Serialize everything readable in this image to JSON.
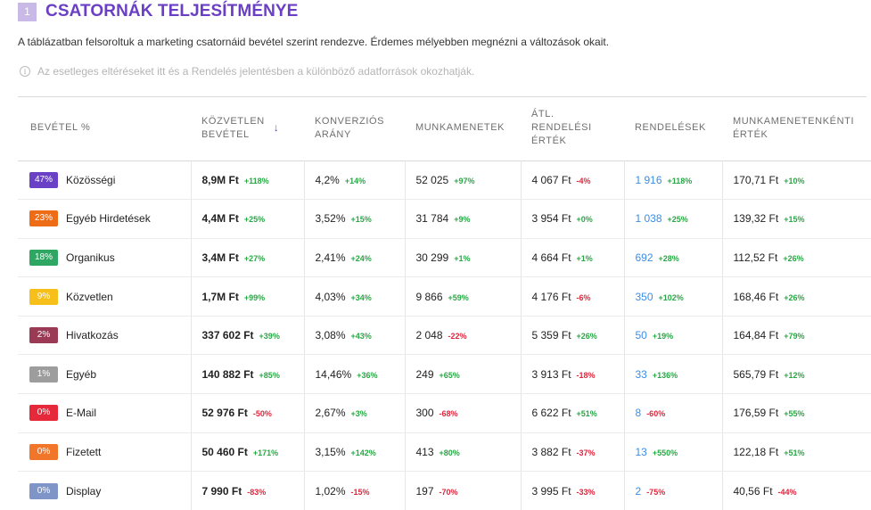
{
  "header": {
    "number": "1",
    "title": "CSATORNÁK TELJESÍTMÉNYE"
  },
  "description": "A táblázatban felsoroltuk a marketing csatornáid bevétel szerint rendezve. Érdemes mélyebben megnézni a változások okait.",
  "info_note": "Az esetleges eltéréseket itt és a Rendelés jelentésben a különböző adatforrások okozhatják.",
  "columns": [
    {
      "line1": "BEVÉTEL %",
      "line2": "",
      "line3": ""
    },
    {
      "line1": "KÖZVETLEN",
      "line2": "BEVÉTEL",
      "line3": ""
    },
    {
      "line1": "KONVERZIÓS",
      "line2": "ARÁNY",
      "line3": ""
    },
    {
      "line1": "MUNKAMENETEK",
      "line2": "",
      "line3": ""
    },
    {
      "line1": "ÁTL.",
      "line2": "RENDELÉSI",
      "line3": "ÉRTÉK"
    },
    {
      "line1": "RENDELÉSEK",
      "line2": "",
      "line3": ""
    },
    {
      "line1": "MUNKAMENETENKÉNTI",
      "line2": "ÉRTÉK",
      "line3": ""
    }
  ],
  "sort_icon": "arrow-down-icon",
  "rows": [
    {
      "pct": "47%",
      "color": "#6a41c6",
      "name": "Közösségi",
      "revenue": "8,9M Ft",
      "revenue_chg": "+118%",
      "conv": "4,2%",
      "conv_chg": "+14%",
      "sessions": "52 025",
      "sessions_chg": "+97%",
      "aov": "4 067 Ft",
      "aov_chg": "-4%",
      "orders": "1 916",
      "orders_chg": "+118%",
      "per_session": "170,71 Ft",
      "per_session_chg": "+10%"
    },
    {
      "pct": "23%",
      "color": "#ef6c17",
      "name": "Egyéb Hirdetések",
      "revenue": "4,4M Ft",
      "revenue_chg": "+25%",
      "conv": "3,52%",
      "conv_chg": "+15%",
      "sessions": "31 784",
      "sessions_chg": "+9%",
      "aov": "3 954 Ft",
      "aov_chg": "+0%",
      "orders": "1 038",
      "orders_chg": "+25%",
      "per_session": "139,32 Ft",
      "per_session_chg": "+15%"
    },
    {
      "pct": "18%",
      "color": "#2ea763",
      "name": "Organikus",
      "revenue": "3,4M Ft",
      "revenue_chg": "+27%",
      "conv": "2,41%",
      "conv_chg": "+24%",
      "sessions": "30 299",
      "sessions_chg": "+1%",
      "aov": "4 664 Ft",
      "aov_chg": "+1%",
      "orders": "692",
      "orders_chg": "+28%",
      "per_session": "112,52 Ft",
      "per_session_chg": "+26%"
    },
    {
      "pct": "9%",
      "color": "#f6bf1a",
      "name": "Közvetlen",
      "revenue": "1,7M Ft",
      "revenue_chg": "+99%",
      "conv": "4,03%",
      "conv_chg": "+34%",
      "sessions": "9 866",
      "sessions_chg": "+59%",
      "aov": "4 176 Ft",
      "aov_chg": "-6%",
      "orders": "350",
      "orders_chg": "+102%",
      "per_session": "168,46 Ft",
      "per_session_chg": "+26%"
    },
    {
      "pct": "2%",
      "color": "#9b3a55",
      "name": "Hivatkozás",
      "revenue": "337 602 Ft",
      "revenue_chg": "+39%",
      "conv": "3,08%",
      "conv_chg": "+43%",
      "sessions": "2 048",
      "sessions_chg": "-22%",
      "aov": "5 359 Ft",
      "aov_chg": "+26%",
      "orders": "50",
      "orders_chg": "+19%",
      "per_session": "164,84 Ft",
      "per_session_chg": "+79%"
    },
    {
      "pct": "1%",
      "color": "#9d9d9d",
      "name": "Egyéb",
      "revenue": "140 882 Ft",
      "revenue_chg": "+85%",
      "conv": "14,46%",
      "conv_chg": "+36%",
      "sessions": "249",
      "sessions_chg": "+65%",
      "aov": "3 913 Ft",
      "aov_chg": "-18%",
      "orders": "33",
      "orders_chg": "+136%",
      "per_session": "565,79 Ft",
      "per_session_chg": "+12%"
    },
    {
      "pct": "0%",
      "color": "#e5293b",
      "name": "E-Mail",
      "revenue": "52 976 Ft",
      "revenue_chg": "-50%",
      "conv": "2,67%",
      "conv_chg": "+3%",
      "sessions": "300",
      "sessions_chg": "-68%",
      "aov": "6 622 Ft",
      "aov_chg": "+51%",
      "orders": "8",
      "orders_chg": "-60%",
      "per_session": "176,59 Ft",
      "per_session_chg": "+55%"
    },
    {
      "pct": "0%",
      "color": "#f2762a",
      "name": "Fizetett",
      "revenue": "50 460 Ft",
      "revenue_chg": "+171%",
      "conv": "3,15%",
      "conv_chg": "+142%",
      "sessions": "413",
      "sessions_chg": "+80%",
      "aov": "3 882 Ft",
      "aov_chg": "-37%",
      "orders": "13",
      "orders_chg": "+550%",
      "per_session": "122,18 Ft",
      "per_session_chg": "+51%"
    },
    {
      "pct": "0%",
      "color": "#7f95c8",
      "name": "Display",
      "revenue": "7 990 Ft",
      "revenue_chg": "-83%",
      "conv": "1,02%",
      "conv_chg": "-15%",
      "sessions": "197",
      "sessions_chg": "-70%",
      "aov": "3 995 Ft",
      "aov_chg": "-33%",
      "orders": "2",
      "orders_chg": "-75%",
      "per_session": "40,56 Ft",
      "per_session_chg": "-44%"
    }
  ]
}
